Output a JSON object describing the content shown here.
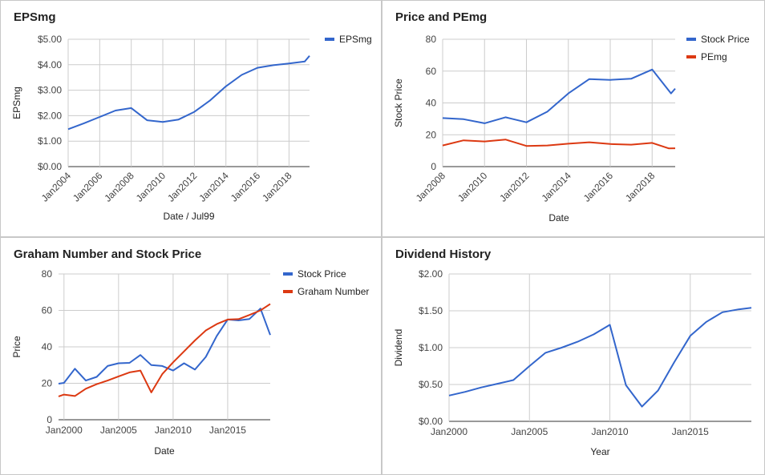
{
  "chart_data": [
    {
      "type": "line",
      "title": "EPSmg",
      "xlabel": "Date / Jul99",
      "ylabel": "EPSmg",
      "ylim": [
        0,
        5
      ],
      "xlim": [
        2004,
        2019.3
      ],
      "y_ticks": [
        "$0.00",
        "$1.00",
        "$2.00",
        "$3.00",
        "$4.00",
        "$5.00"
      ],
      "x_ticks": [
        "Jan2004",
        "Jan2006",
        "Jan2008",
        "Jan2010",
        "Jan2012",
        "Jan2014",
        "Jan2016",
        "Jan2018"
      ],
      "legend_position": "right",
      "grid": true,
      "series": [
        {
          "name": "EPSmg",
          "color": "#3366cc",
          "x": [
            2004,
            2005,
            2006,
            2007,
            2008,
            2009,
            2010,
            2011,
            2012,
            2013,
            2014,
            2015,
            2016,
            2017,
            2018,
            2019,
            2019.3
          ],
          "y": [
            1.47,
            1.7,
            1.95,
            2.2,
            2.3,
            1.82,
            1.75,
            1.85,
            2.15,
            2.6,
            3.15,
            3.6,
            3.88,
            3.98,
            4.05,
            4.13,
            4.35
          ]
        }
      ]
    },
    {
      "type": "line",
      "title": "Price and PEmg",
      "xlabel": "Date",
      "ylabel": "Stock Price",
      "ylim": [
        0,
        80
      ],
      "xlim": [
        2008,
        2019.1
      ],
      "y_ticks": [
        "0",
        "20",
        "40",
        "60",
        "80"
      ],
      "x_ticks": [
        "Jan2008",
        "Jan2010",
        "Jan2012",
        "Jan2014",
        "Jan2016",
        "Jan2018"
      ],
      "legend_position": "right",
      "grid": true,
      "series": [
        {
          "name": "Stock Price",
          "color": "#3366cc",
          "x": [
            2008,
            2009,
            2010,
            2011,
            2012,
            2013,
            2014,
            2015,
            2016,
            2017,
            2018,
            2018.9,
            2019.1
          ],
          "y": [
            30.5,
            29.8,
            27.2,
            31.0,
            27.8,
            34.5,
            46.0,
            55.0,
            54.5,
            55.2,
            61.0,
            46.0,
            49.0
          ]
        },
        {
          "name": "PEmg",
          "color": "#dc3912",
          "x": [
            2008,
            2009,
            2010,
            2011,
            2012,
            2013,
            2014,
            2015,
            2016,
            2017,
            2018,
            2018.8,
            2019.1
          ],
          "y": [
            13.3,
            16.5,
            15.8,
            17.0,
            13.0,
            13.3,
            14.4,
            15.3,
            14.2,
            13.8,
            14.9,
            11.4,
            11.5
          ]
        }
      ]
    },
    {
      "type": "line",
      "title": "Graham Number and Stock Price",
      "xlabel": "Date",
      "ylabel": "Price",
      "ylim": [
        0,
        80
      ],
      "xlim": [
        1999.5,
        2018.9
      ],
      "y_ticks": [
        "0",
        "20",
        "40",
        "60",
        "80"
      ],
      "x_ticks": [
        "Jan2000",
        "Jan2005",
        "Jan2010",
        "Jan2015"
      ],
      "legend_position": "right",
      "grid": true,
      "series": [
        {
          "name": "Stock Price",
          "color": "#3366cc",
          "x": [
            1999.5,
            2000,
            2001,
            2002,
            2003,
            2004,
            2005,
            2006,
            2007,
            2008,
            2009,
            2010,
            2011,
            2012,
            2013,
            2014,
            2015,
            2016,
            2017,
            2018,
            2018.9
          ],
          "y": [
            19.8,
            20.2,
            28.0,
            21.5,
            23.5,
            29.5,
            31.0,
            31.2,
            35.5,
            30.0,
            29.5,
            27.0,
            31.0,
            27.5,
            34.5,
            46.0,
            55.0,
            54.5,
            55.3,
            61.0,
            46.5
          ]
        },
        {
          "name": "Graham Number",
          "color": "#dc3912",
          "x": [
            1999.5,
            2000,
            2001,
            2002,
            2003,
            2004,
            2005,
            2006,
            2007,
            2008,
            2009,
            2010,
            2011,
            2012,
            2013,
            2014,
            2015,
            2016,
            2017,
            2018,
            2018.9
          ],
          "y": [
            12.8,
            13.8,
            13.0,
            17.0,
            19.5,
            21.5,
            23.8,
            26.0,
            27.0,
            15.0,
            25.0,
            31.5,
            37.5,
            43.5,
            49.0,
            52.5,
            55.0,
            55.2,
            57.5,
            60.0,
            63.5
          ]
        }
      ]
    },
    {
      "type": "line",
      "title": "Dividend History",
      "xlabel": "Year",
      "ylabel": "Dividend",
      "ylim": [
        0,
        2
      ],
      "xlim": [
        2000,
        2018.8
      ],
      "y_ticks": [
        "$0.00",
        "$0.50",
        "$1.00",
        "$1.50",
        "$2.00"
      ],
      "x_ticks": [
        "Jan2000",
        "Jan2005",
        "Jan2010",
        "Jan2015"
      ],
      "legend_position": "none",
      "grid": true,
      "series": [
        {
          "color": "#3366cc",
          "x": [
            2000,
            2001,
            2002,
            2003,
            2004,
            2005,
            2006,
            2007,
            2008,
            2009,
            2010,
            2011,
            2012,
            2013,
            2014,
            2015,
            2016,
            2017,
            2018,
            2018.8
          ],
          "y": [
            0.35,
            0.4,
            0.46,
            0.51,
            0.56,
            0.75,
            0.93,
            1.0,
            1.08,
            1.18,
            1.31,
            0.49,
            0.2,
            0.42,
            0.8,
            1.16,
            1.35,
            1.48,
            1.52,
            1.54
          ]
        }
      ]
    }
  ]
}
